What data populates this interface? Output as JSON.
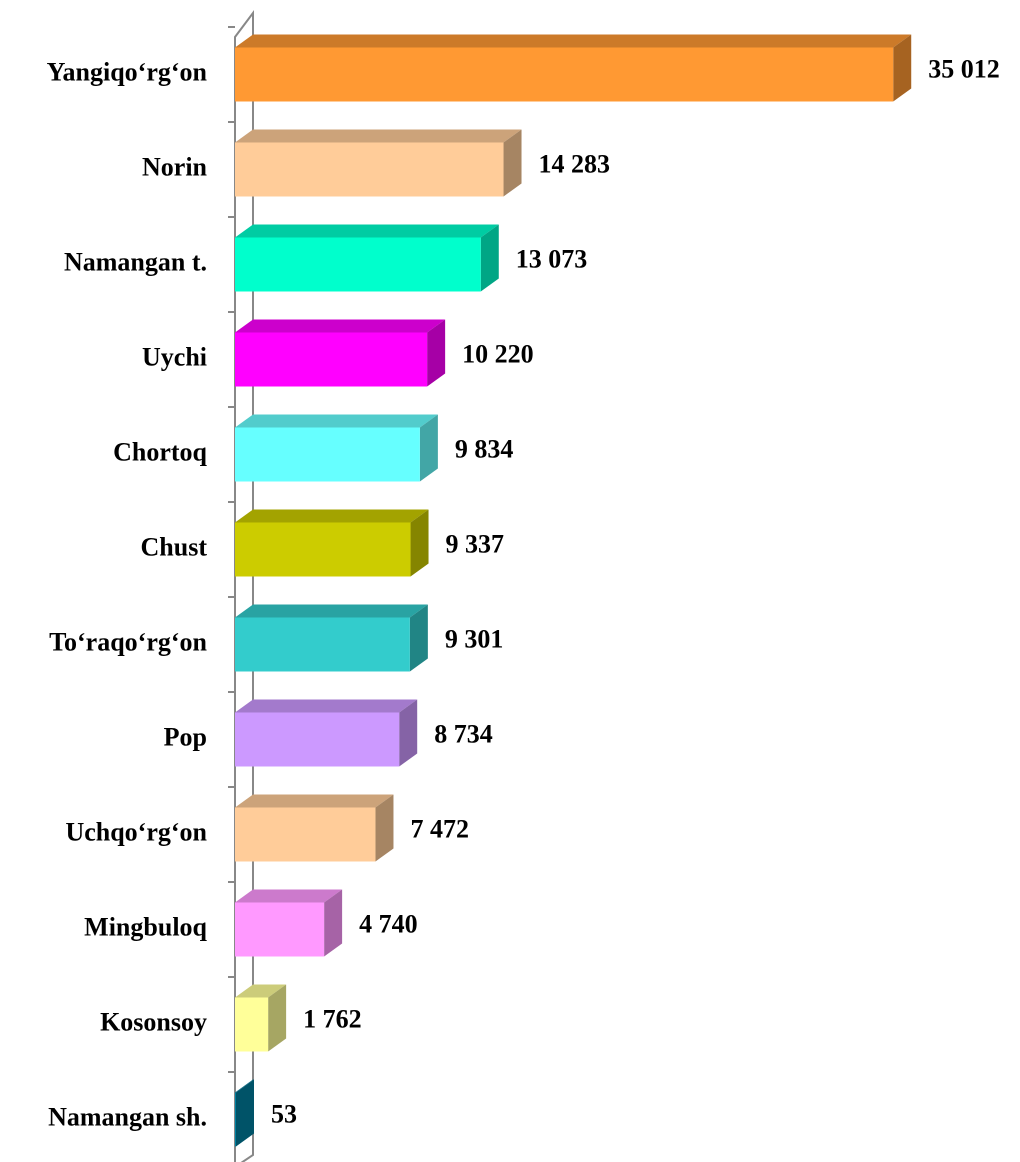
{
  "chart_data": {
    "type": "bar",
    "orientation": "horizontal",
    "categories": [
      "Yangiqo‘rg‘on",
      "Norin",
      "Namangan t.",
      "Uychi",
      "Chortoq",
      "Chust",
      "To‘raqo‘rg‘on",
      "Pop",
      "Uchqo‘rg‘on",
      "Mingbuloq",
      "Kosonsoy",
      "Namangan sh."
    ],
    "values": [
      35012,
      14283,
      13073,
      10220,
      9834,
      9337,
      9301,
      8734,
      7472,
      4740,
      1762,
      53
    ],
    "value_labels": [
      "35 012",
      "14 283",
      "13 073",
      "10 220",
      "9 834",
      "9 337",
      "9 301",
      "8 734",
      "7 472",
      "4 740",
      "1 762",
      "53"
    ],
    "colors": [
      "#ff9933",
      "#ffcc99",
      "#00ffcc",
      "#ff00ff",
      "#66ffff",
      "#cccc00",
      "#33cccc",
      "#cc99ff",
      "#ffcc99",
      "#ff99ff",
      "#ffff99",
      "#0080a0"
    ],
    "xlim": [
      0,
      40000
    ]
  }
}
